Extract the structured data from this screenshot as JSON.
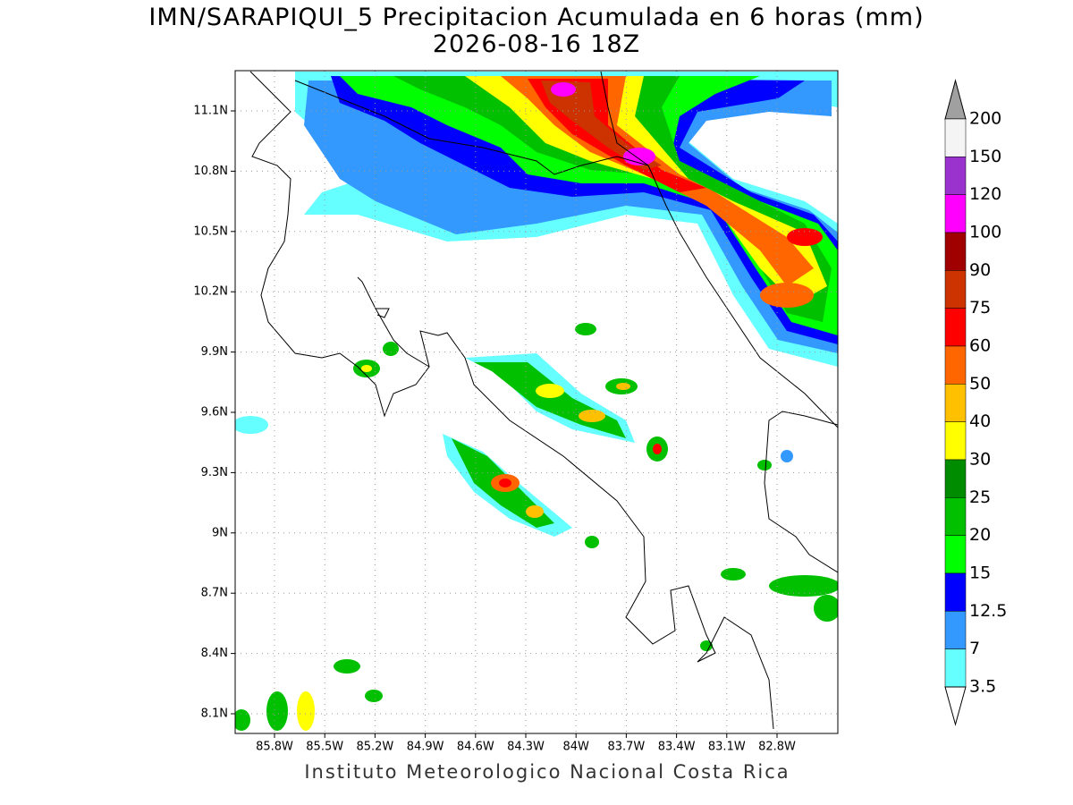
{
  "header": {
    "title": "IMN/SARAPIQUI_5 Precipitacion Acumulada en 6 horas (mm)",
    "subtitle": "2026-08-16 18Z"
  },
  "map": {
    "lat_ticks": [
      "11.1N",
      "10.8N",
      "10.5N",
      "10.2N",
      "9.9N",
      "9.6N",
      "9.3N",
      "9N",
      "8.7N",
      "8.4N",
      "8.1N"
    ],
    "lon_ticks": [
      "85.8W",
      "85.5W",
      "85.2W",
      "84.9W",
      "84.6W",
      "84.3W",
      "84W",
      "83.7W",
      "83.4W",
      "83.1W",
      "82.8W"
    ]
  },
  "legend": {
    "levels": [
      "200",
      "150",
      "120",
      "100",
      "90",
      "75",
      "60",
      "50",
      "40",
      "30",
      "25",
      "20",
      "15",
      "12.5",
      "7",
      "3.5"
    ],
    "colors": [
      "#f4f4f4",
      "#9a32cd",
      "#ff00ff",
      "#a00000",
      "#cc3300",
      "#ff0000",
      "#ff6600",
      "#ffc000",
      "#ffff00",
      "#008c00",
      "#00c000",
      "#00ff00",
      "#0000ff",
      "#3399ff",
      "#66ffff"
    ],
    "over_color": "#a0a0a0",
    "under_color": "#ffffff"
  },
  "footer": "Instituto Meteorologico Nacional Costa Rica"
}
